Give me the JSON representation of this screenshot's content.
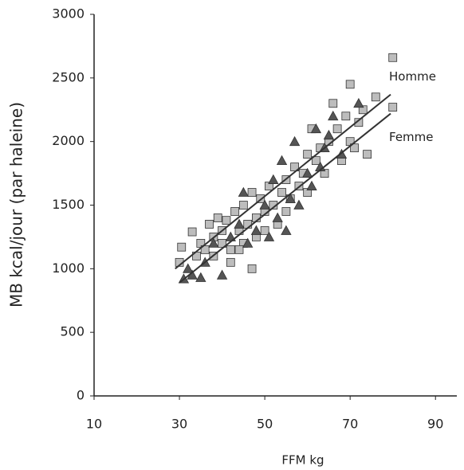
{
  "chart_data": {
    "type": "scatter",
    "x_label": "FFM kg",
    "y_label": "MB kcal/jour (par haleine)",
    "xlim": [
      10,
      95
    ],
    "ylim": [
      0,
      3000
    ],
    "xticks": [
      10,
      30,
      50,
      70,
      90
    ],
    "yticks": [
      0,
      500,
      1000,
      1500,
      2000,
      2500,
      3000
    ],
    "grid": false,
    "series": [
      {
        "marker": "square",
        "color": "#bdbdbd",
        "x": [
          30,
          30.5,
          33,
          34,
          35,
          36,
          37,
          38,
          38,
          39,
          40,
          40,
          41,
          42,
          42,
          43,
          44,
          45,
          45,
          46,
          47,
          48,
          48,
          49,
          50,
          50,
          51,
          52,
          53,
          54,
          55,
          55,
          56,
          57,
          58,
          59,
          60,
          60,
          61,
          62,
          63,
          64,
          65,
          66,
          67,
          68,
          69,
          70,
          70,
          71,
          72,
          73,
          74,
          76,
          80,
          80,
          47,
          44
        ],
        "y": [
          1050,
          1170,
          1290,
          1100,
          1200,
          1150,
          1350,
          1250,
          1100,
          1400,
          1300,
          1200,
          1380,
          1150,
          1050,
          1450,
          1300,
          1200,
          1500,
          1350,
          1600,
          1400,
          1250,
          1550,
          1450,
          1300,
          1650,
          1500,
          1350,
          1600,
          1700,
          1450,
          1550,
          1800,
          1650,
          1750,
          1900,
          1600,
          2100,
          1850,
          1950,
          1750,
          2000,
          2300,
          2100,
          1850,
          2200,
          2450,
          2000,
          1950,
          2150,
          2250,
          1900,
          2350,
          2660,
          2270,
          1000,
          1150
        ]
      },
      {
        "marker": "triangle",
        "color": "#555555",
        "x": [
          31,
          32,
          33,
          35,
          36,
          38,
          40,
          42,
          44,
          45,
          46,
          48,
          50,
          51,
          52,
          53,
          54,
          55,
          56,
          57,
          58,
          60,
          61,
          62,
          63,
          64,
          65,
          66,
          68,
          72
        ],
        "y": [
          920,
          1000,
          950,
          930,
          1050,
          1200,
          950,
          1250,
          1350,
          1600,
          1200,
          1300,
          1500,
          1250,
          1700,
          1400,
          1850,
          1300,
          1550,
          2000,
          1500,
          1750,
          1650,
          2100,
          1800,
          1950,
          2050,
          2200,
          1900,
          2300
        ]
      }
    ],
    "lines": [
      {
        "name": "Homme",
        "color": "#333333",
        "x": [
          29,
          79.5
        ],
        "y": [
          1000,
          2370
        ]
      },
      {
        "name": "Femme",
        "color": "#333333",
        "x": [
          30,
          79.5
        ],
        "y": [
          890,
          2220
        ]
      }
    ]
  }
}
